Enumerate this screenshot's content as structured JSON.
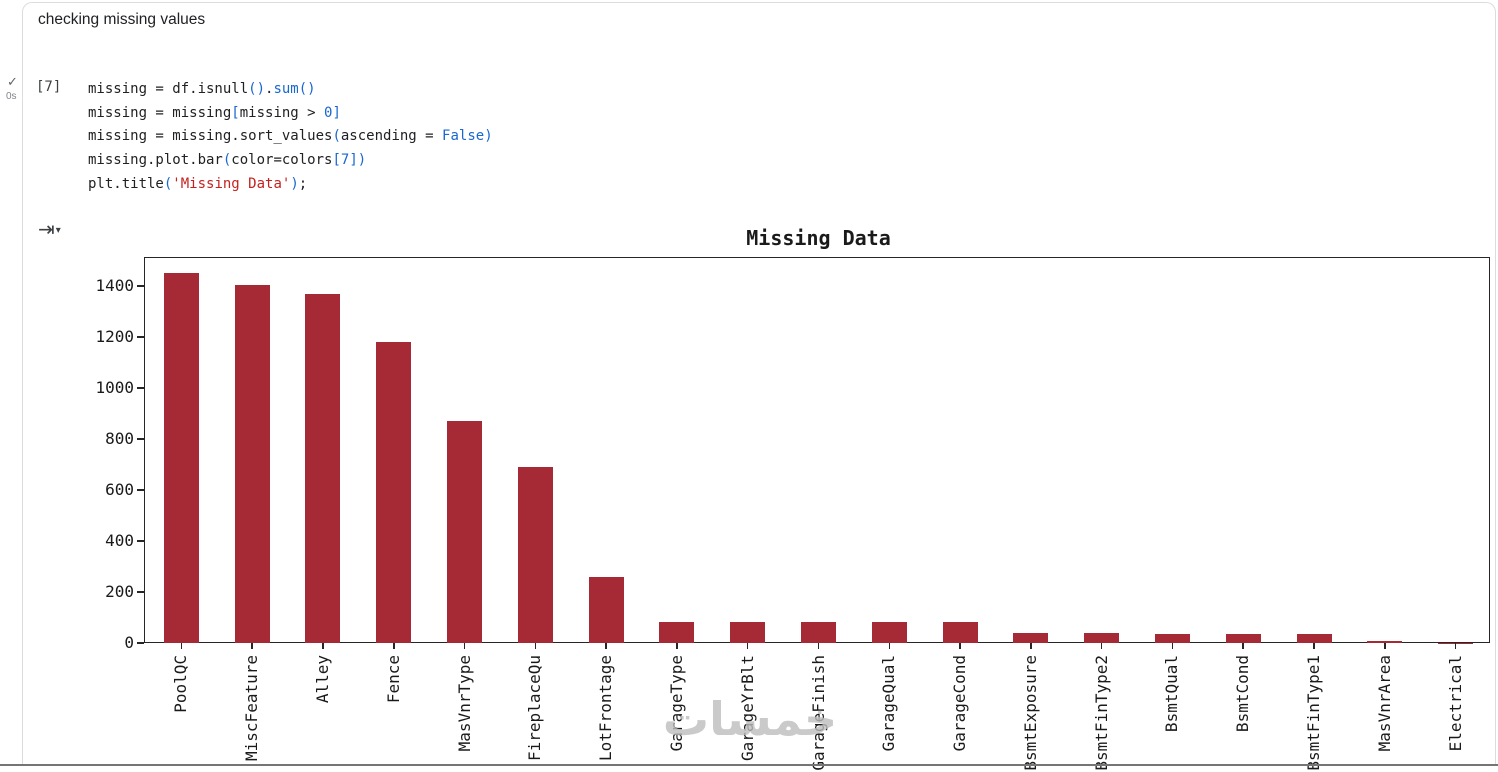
{
  "icons": {
    "check": "✓",
    "output_arrow": "⇥",
    "caret_down": "▾"
  },
  "markdown_cell": {
    "text": "checking missing values"
  },
  "code_cell": {
    "execution_count": "[7]",
    "execution_time": "0s",
    "lines": [
      [
        {
          "t": "missing = df.isnull",
          "c": "p"
        },
        {
          "t": "()",
          "c": "b"
        },
        {
          "t": ".",
          "c": "p"
        },
        {
          "t": "sum",
          "c": "b"
        },
        {
          "t": "()",
          "c": "b"
        }
      ],
      [
        {
          "t": "missing = missing",
          "c": "p"
        },
        {
          "t": "[",
          "c": "b"
        },
        {
          "t": "missing > ",
          "c": "p"
        },
        {
          "t": "0",
          "c": "b"
        },
        {
          "t": "]",
          "c": "b"
        }
      ],
      [
        {
          "t": "missing = missing.sort_values",
          "c": "p"
        },
        {
          "t": "(",
          "c": "b"
        },
        {
          "t": "ascending = ",
          "c": "p"
        },
        {
          "t": "False",
          "c": "b"
        },
        {
          "t": ")",
          "c": "b"
        }
      ],
      [
        {
          "t": "missing.plot.bar",
          "c": "p"
        },
        {
          "t": "(",
          "c": "b"
        },
        {
          "t": "color=colors",
          "c": "p"
        },
        {
          "t": "[",
          "c": "b"
        },
        {
          "t": "7",
          "c": "b"
        },
        {
          "t": "]",
          "c": "b"
        },
        {
          "t": ")",
          "c": "b"
        }
      ],
      [
        {
          "t": "plt.title",
          "c": "p"
        },
        {
          "t": "(",
          "c": "b"
        },
        {
          "t": "'Missing Data'",
          "c": "s"
        },
        {
          "t": ")",
          "c": "b"
        },
        {
          "t": ";",
          "c": "p"
        }
      ]
    ]
  },
  "watermark": {
    "text": "خمسات"
  },
  "theme": {
    "code_plain": "#202124",
    "code_blue": "#1967d2",
    "code_string": "#c5221f",
    "axis_color": "#262626"
  },
  "chart_data": {
    "type": "bar",
    "title": "Missing Data",
    "categories": [
      "PoolQC",
      "MiscFeature",
      "Alley",
      "Fence",
      "MasVnrType",
      "FireplaceQu",
      "LotFrontage",
      "GarageType",
      "GarageYrBlt",
      "GarageFinish",
      "GarageQual",
      "GarageCond",
      "BsmtExposure",
      "BsmtFinType2",
      "BsmtQual",
      "BsmtCond",
      "BsmtFinType1",
      "MasVnrArea",
      "Electrical"
    ],
    "values": [
      1453,
      1406,
      1369,
      1179,
      872,
      690,
      259,
      81,
      81,
      81,
      81,
      81,
      38,
      38,
      37,
      37,
      37,
      8,
      1
    ],
    "xlabel": "",
    "ylabel": "",
    "ylim": [
      0,
      1510
    ],
    "yticks": [
      0,
      200,
      400,
      600,
      800,
      1000,
      1200,
      1400
    ],
    "bar_color": "#a52a35",
    "background": "#ffffff",
    "grid": false,
    "legend_position": "none",
    "xtick_rotation": 90
  }
}
